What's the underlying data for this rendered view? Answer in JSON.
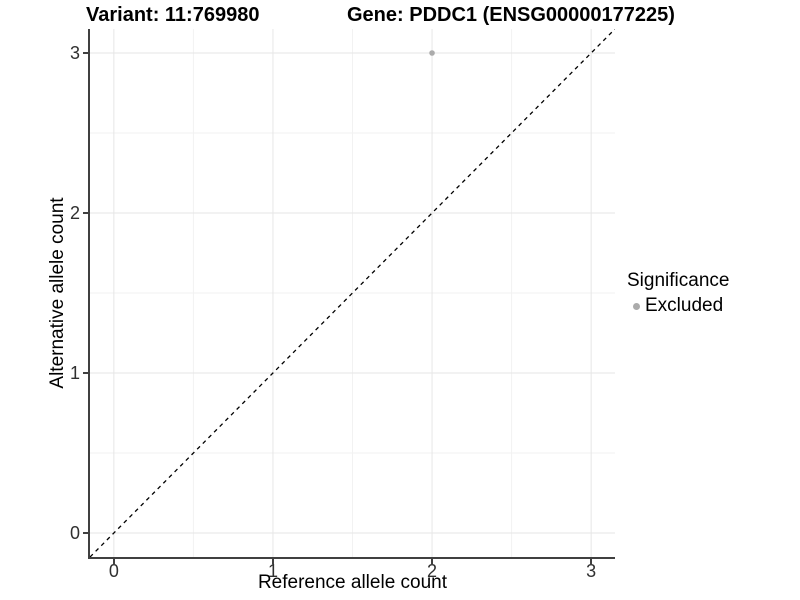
{
  "chart_data": {
    "type": "scatter",
    "title_left": "Variant: 11:769980",
    "title_right": "Gene: PDDC1 (ENSG00000177225)",
    "xlabel": "Reference allele count",
    "ylabel": "Alternative allele count",
    "xlim": [
      -0.15,
      3.15
    ],
    "ylim": [
      -0.15,
      3.15
    ],
    "xticks": [
      0,
      1,
      2,
      3
    ],
    "yticks": [
      0,
      1,
      2,
      3
    ],
    "xminor": [
      0.5,
      1.5,
      2.5
    ],
    "yminor": [
      0.5,
      1.5,
      2.5
    ],
    "grid": "major and minor, light gray on white panel",
    "series": [
      {
        "name": "Excluded",
        "color": "#ababab",
        "points": [
          {
            "x": 2,
            "y": 3
          }
        ]
      }
    ],
    "reference_line": {
      "equation": "y = x",
      "style": "dashed",
      "color": "#000000"
    },
    "legend": {
      "title": "Significance",
      "position": "right",
      "items": [
        {
          "label": "Excluded",
          "color": "#ababab"
        }
      ]
    }
  },
  "colors": {
    "background": "#ffffff",
    "axis_line": "#404040",
    "tick_label": "#303030",
    "grid_major": "#e6e6e6",
    "grid_minor": "#f2f2f2",
    "point": "#ababab"
  }
}
